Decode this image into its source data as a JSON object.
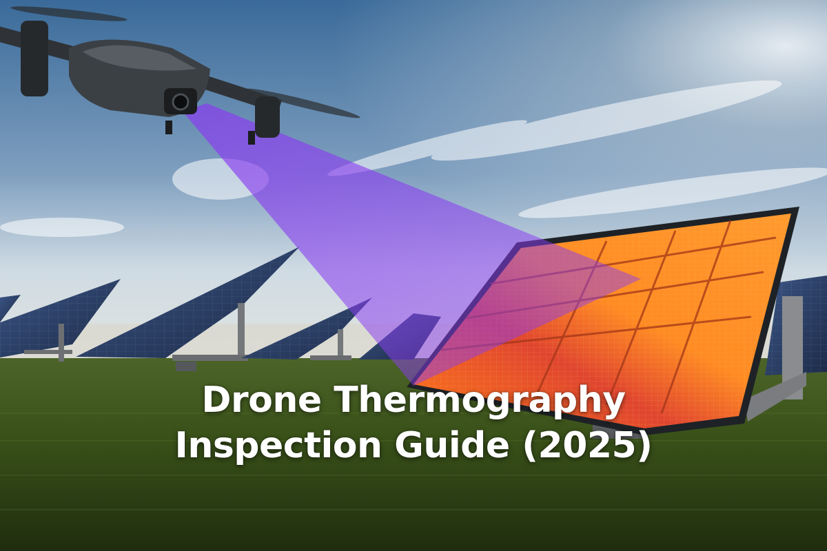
{
  "headline": {
    "line1": "Drone Thermography",
    "line2": "Inspection Guide (2025)"
  },
  "scene": {
    "subjects": [
      "drone-with-thermal-camera",
      "thermal-scan-beam",
      "solar-panel-with-thermal-overlay",
      "solar-panel-field",
      "grass-field",
      "sky"
    ],
    "colors": {
      "sky_top": "#3f6e9c",
      "sky_bottom": "#d6e0e6",
      "grass": "#3f5a1f",
      "beam": "#8a3df0",
      "thermal_hot": "#ff8a1e",
      "thermal_mid": "#e0452f",
      "thermal_cool": "#5a2fc9",
      "panel_blue": "#2c3f66",
      "drone_body": "#2f3337"
    }
  }
}
